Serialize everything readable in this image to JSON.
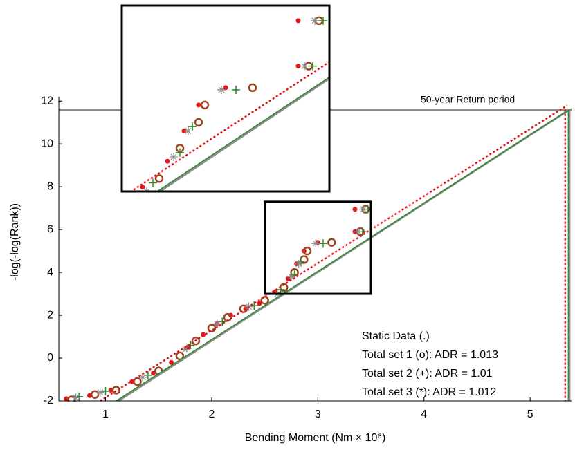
{
  "chart_data": {
    "type": "scatter",
    "xlabel": "Bending Moment (Nm × 10⁶)",
    "ylabel": "-log(-log(Rank))",
    "xlim": [
      0.56,
      5.39
    ],
    "ylim": [
      -2,
      12.2
    ],
    "xticks": [
      1,
      2,
      3,
      4,
      5
    ],
    "yticks": [
      -2,
      0,
      2,
      4,
      6,
      8,
      10,
      12
    ],
    "series": [
      {
        "name": "Static Data (.)",
        "color": "#e8141b",
        "marker": "dot",
        "x": [
          0.63,
          0.85,
          1.05,
          1.25,
          1.45,
          1.62,
          1.78,
          1.92,
          2.05,
          2.18,
          2.32,
          2.45,
          2.6,
          2.72,
          2.8,
          2.87,
          3.0,
          3.35,
          3.35
        ],
        "values": [
          -1.9,
          -1.75,
          -1.5,
          -1.1,
          -0.7,
          -0.2,
          0.5,
          1.1,
          1.6,
          2.0,
          2.3,
          2.55,
          3.1,
          3.7,
          4.4,
          5.0,
          5.4,
          5.9,
          6.95
        ]
      },
      {
        "name": "Total set 1 (o): ADR = 1.013",
        "color": "#a0461e",
        "marker": "circle",
        "x": [
          0.68,
          0.9,
          1.1,
          1.3,
          1.5,
          1.7,
          1.85,
          2.0,
          2.15,
          2.3,
          2.5,
          2.68,
          2.78,
          2.87,
          2.9,
          3.13,
          3.4,
          3.45
        ],
        "values": [
          -1.95,
          -1.7,
          -1.5,
          -1.1,
          -0.6,
          0.1,
          0.8,
          1.4,
          1.9,
          2.3,
          2.7,
          3.3,
          4.0,
          4.6,
          5.0,
          5.4,
          5.9,
          6.95
        ]
      },
      {
        "name": "Total set 2 (+): ADR = 1.01",
        "color": "#2e8b2e",
        "marker": "plus",
        "x": [
          0.75,
          1.0,
          1.4,
          1.8,
          2.1,
          2.4,
          2.65,
          2.78,
          2.84,
          3.05,
          3.42,
          3.47
        ],
        "values": [
          -1.8,
          -1.55,
          -0.8,
          0.6,
          1.7,
          2.45,
          3.2,
          3.9,
          4.5,
          5.35,
          5.9,
          6.95
        ]
      },
      {
        "name": "Total set 3 (*): ADR = 1.012",
        "color": "#8c8c8c",
        "marker": "star",
        "x": [
          0.72,
          0.95,
          1.35,
          1.75,
          2.05,
          2.35,
          2.62,
          2.75,
          2.82,
          2.98,
          3.38,
          3.43
        ],
        "values": [
          -1.85,
          -1.6,
          -0.9,
          0.4,
          1.6,
          2.4,
          3.0,
          3.8,
          4.4,
          5.35,
          5.9,
          6.95
        ]
      }
    ],
    "fit_lines": [
      {
        "color": "#8c8c8c",
        "width": 3,
        "dash": "",
        "x": [
          1.12,
          5.37
        ],
        "values": [
          -2,
          11.6
        ]
      },
      {
        "color": "#2e8b2e",
        "width": 1.5,
        "dash": "",
        "x": [
          1.1,
          5.37
        ],
        "values": [
          -2,
          11.6
        ]
      },
      {
        "color": "#e8141b",
        "width": 2.5,
        "dash": "3,3",
        "x": [
          0.95,
          5.35
        ],
        "values": [
          -2,
          11.8
        ]
      }
    ],
    "vlines": [
      {
        "color": "#8c8c8c",
        "width": 3,
        "dash": "",
        "x": 5.37
      },
      {
        "color": "#2e8b2e",
        "width": 1.5,
        "dash": "",
        "x": 5.36
      },
      {
        "color": "#e8141b",
        "width": 2.5,
        "dash": "3,3",
        "x": 5.33
      }
    ],
    "return_level": 11.6,
    "return_label": "50-year Return period",
    "inset": {
      "xlim": [
        2.5,
        3.5
      ],
      "ylim": [
        3,
        7.3
      ]
    }
  }
}
